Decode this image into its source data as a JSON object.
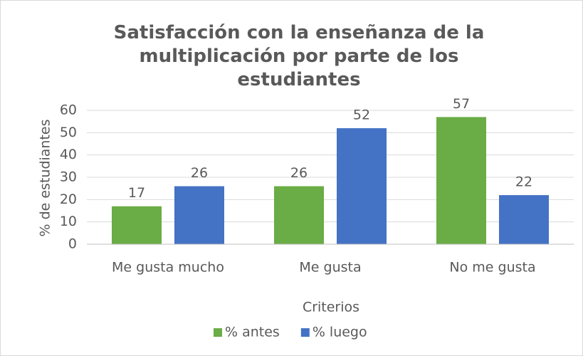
{
  "chart_data": {
    "type": "bar",
    "title": "Satisfacción con la enseñanza de la multiplicación por parte de los estudiantes",
    "x_label": "Criterios",
    "y_label": "% de estudiantes",
    "categories": [
      "Me gusta mucho",
      "Me gusta",
      "No me gusta"
    ],
    "series": [
      {
        "name": "% antes",
        "color": "#6aac45",
        "values": [
          17,
          26,
          57
        ]
      },
      {
        "name": "% luego",
        "color": "#4472c4",
        "values": [
          26,
          52,
          22
        ]
      }
    ],
    "ylim": [
      0,
      60
    ],
    "yticks": [
      0,
      10,
      20,
      30,
      40,
      50,
      60
    ],
    "grid": true,
    "legend": "bottom"
  }
}
